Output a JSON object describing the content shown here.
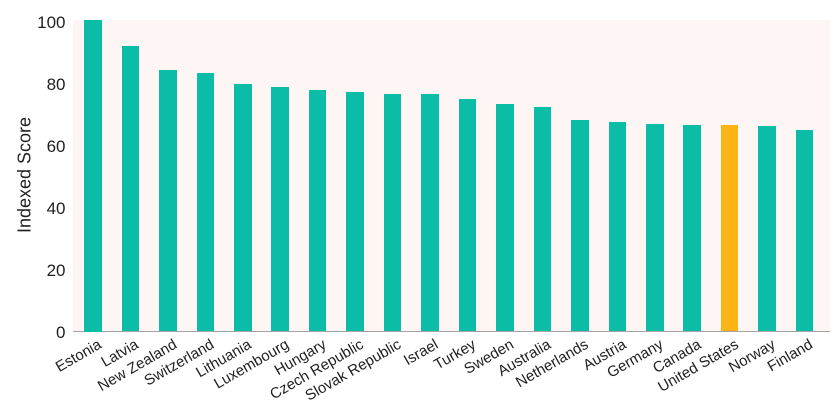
{
  "page": {
    "background": "#ffffff"
  },
  "chart_data": {
    "type": "bar",
    "title": "",
    "xlabel": "",
    "ylabel": "Indexed Score",
    "categories": [
      "Estonia",
      "Latvia",
      "New Zealand",
      "Switzerland",
      "Lithuania",
      "Luxembourg",
      "Hungary",
      "Czech Republic",
      "Slovak Republic",
      "Israel",
      "Turkey",
      "Sweden",
      "Australia",
      "Netherlands",
      "Austria",
      "Germany",
      "Canada",
      "United States",
      "Norway",
      "Finland"
    ],
    "values": [
      100.5,
      92.1,
      84.4,
      83.4,
      79.8,
      79.0,
      77.8,
      77.3,
      76.7,
      76.6,
      75.0,
      73.4,
      72.3,
      68.2,
      67.7,
      66.8,
      66.7,
      66.6,
      66.3,
      65.0
    ],
    "ylim": [
      0,
      100.5
    ],
    "yticks": [
      0,
      20,
      40,
      60,
      80,
      100
    ],
    "grid": false,
    "legend": false,
    "bar_color": "#0bbda6",
    "highlight": {
      "category": "United States",
      "color": "#fcb316"
    },
    "plot_background": "#fdf6f5",
    "axis_line_color": "#a7a3a2",
    "label_color": "#1f1f1f"
  }
}
